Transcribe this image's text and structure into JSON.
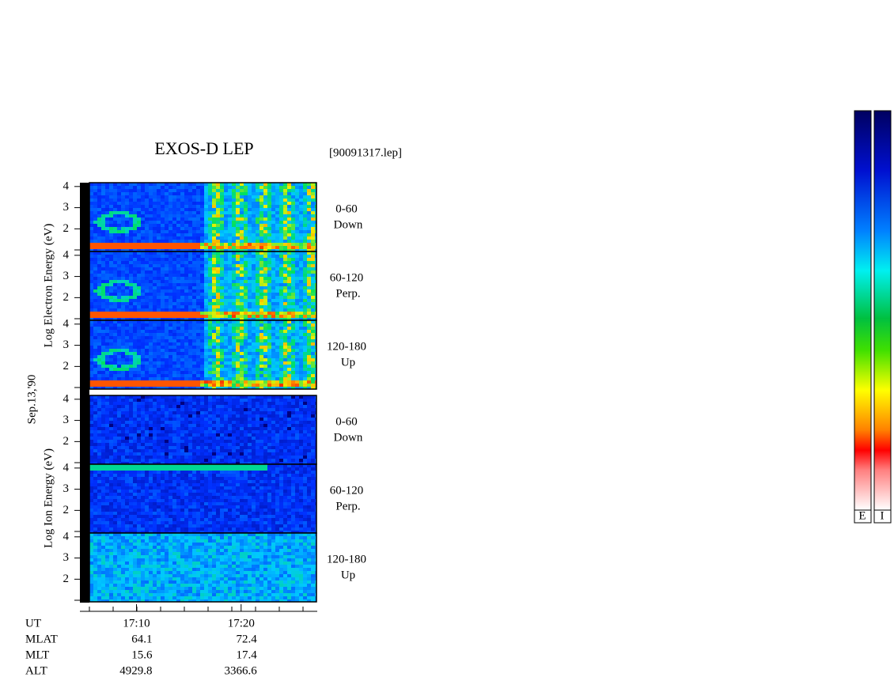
{
  "chart_data": {
    "type": "spectrogram",
    "title": "EXOS-D LEP",
    "file": "[90091317.lep]",
    "date": "Sep.13,'90",
    "groups": [
      {
        "label": "Log Electron Energy (eV)",
        "panels": [
          {
            "angle": "0-60",
            "direction": "Down"
          },
          {
            "angle": "60-120",
            "direction": "Perp."
          },
          {
            "angle": "120-180",
            "direction": "Up"
          }
        ]
      },
      {
        "label": "Log Ion Energy (eV)",
        "panels": [
          {
            "angle": "0-60",
            "direction": "Down"
          },
          {
            "angle": "60-120",
            "direction": "Perp."
          },
          {
            "angle": "120-180",
            "direction": "Up"
          }
        ]
      }
    ],
    "ylim": [
      0.93,
      4.18
    ],
    "yticks": [
      2,
      3,
      4
    ],
    "xlim": [
      1025.5,
      1047.2
    ],
    "xticks": [
      {
        "value": 1030,
        "label": "17:10"
      },
      {
        "value": 1040,
        "label": "17:20"
      }
    ],
    "ephemeris": {
      "labels": [
        "UT",
        "MLAT",
        "MLT",
        "ALT"
      ],
      "rows": [
        [
          64.1,
          72.4
        ],
        [
          15.6,
          17.4
        ],
        [
          4929.8,
          3366.6
        ]
      ]
    },
    "colorbar_labels": [
      "E",
      "I"
    ]
  }
}
